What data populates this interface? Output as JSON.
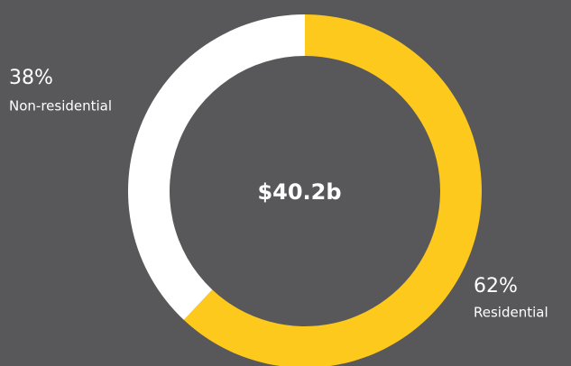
{
  "chart_data": {
    "type": "donut",
    "center_label": "$40.2b",
    "categories": [
      "Residential",
      "Non-residential"
    ],
    "values": [
      62,
      38
    ],
    "value_labels": [
      "62%",
      "38%"
    ],
    "colors": [
      "#fdc91c",
      "#ffffff"
    ]
  }
}
